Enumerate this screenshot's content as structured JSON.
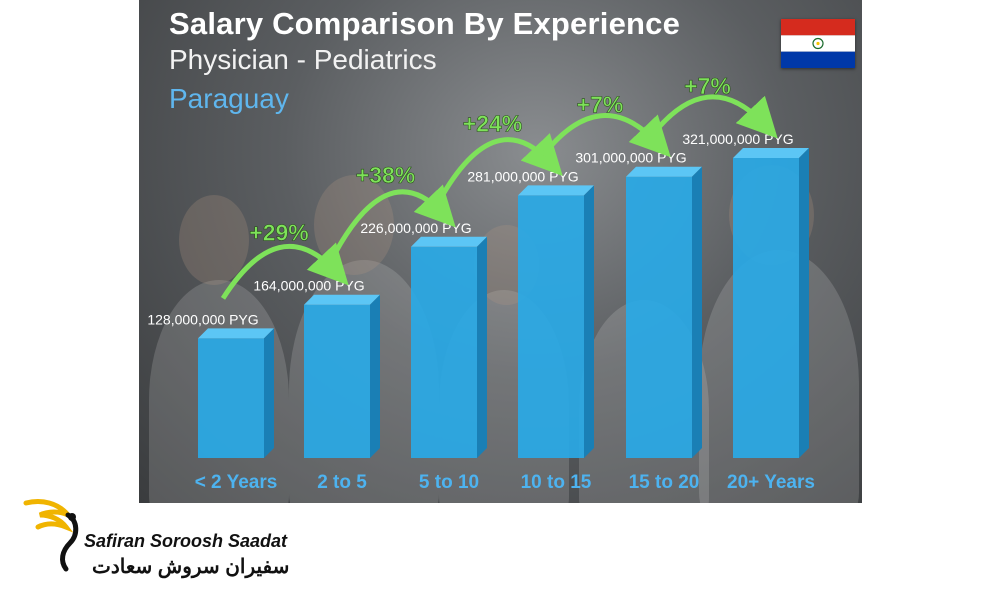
{
  "chart_data": {
    "type": "bar",
    "title": "Salary Comparison By Experience",
    "subtitle": "Physician - Pediatrics",
    "country": "Paraguay",
    "categories": [
      "< 2 Years",
      "2 to 5",
      "5 to 10",
      "10 to 15",
      "15 to 20",
      "20+ Years"
    ],
    "values": [
      128000000,
      164000000,
      226000000,
      281000000,
      301000000,
      321000000
    ],
    "value_labels": [
      "128,000,000 PYG",
      "164,000,000 PYG",
      "226,000,000 PYG",
      "281,000,000 PYG",
      "301,000,000 PYG",
      "321,000,000 PYG"
    ],
    "growth_labels": [
      "+29%",
      "+38%",
      "+24%",
      "+7%",
      "+7%"
    ],
    "unit": "PYG"
  },
  "colors": {
    "bar": "#29a9e6",
    "bar_top": "#5cc6f5",
    "bar_side": "#1a7fb5",
    "growth": "#7ee25a",
    "category_label": "#4db3f0",
    "value_label": "#ffffff"
  },
  "brand": {
    "name_en": "Safiran Soroosh Saadat",
    "name_fa": "سفیران سروش سعادت"
  }
}
